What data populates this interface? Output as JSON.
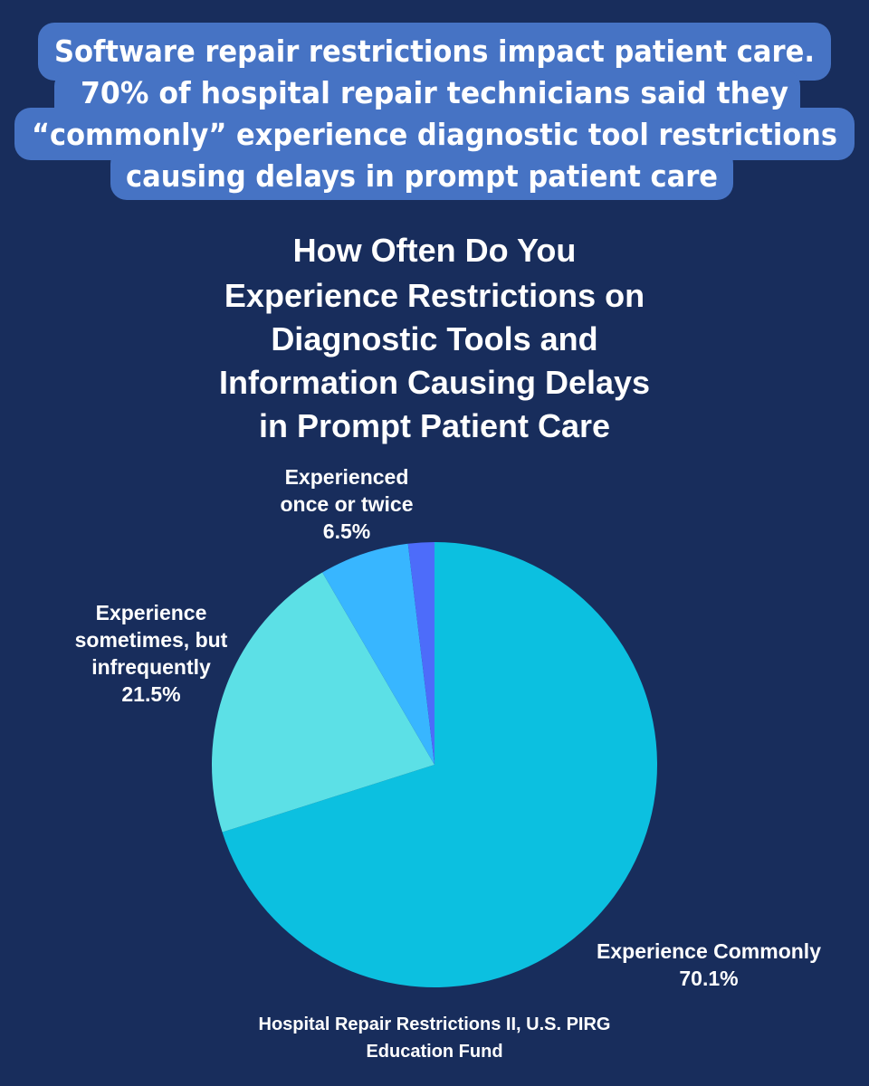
{
  "headline": {
    "lines": [
      "Software repair restrictions impact patient care.",
      "70% of hospital repair technicians said they",
      "“commonly” experience diagnostic tool restrictions",
      "causing delays in prompt patient care"
    ],
    "background_color": "#4673c4"
  },
  "chart_data": {
    "type": "pie",
    "title": "How Often Do You Experience Restrictions on Diagnostic Tools and Information Causing Delays in Prompt Patient Care",
    "title_lines": [
      "How Often Do You",
      "Experience Restrictions on",
      "Diagnostic Tools and",
      "Information Causing Delays",
      "in Prompt Patient Care"
    ],
    "slices": [
      {
        "label_lines": [
          "Experience Commonly"
        ],
        "value": 70.1,
        "value_label": "70.1%",
        "color": "#0cc0e0"
      },
      {
        "label_lines": [
          "Experience",
          "sometimes, but",
          "infrequently"
        ],
        "value": 21.5,
        "value_label": "21.5%",
        "color": "#5ce0e6"
      },
      {
        "label_lines": [
          "Experienced",
          "once or twice"
        ],
        "value": 6.5,
        "value_label": "6.5%",
        "color": "#38b6ff"
      },
      {
        "label_lines": [],
        "value": 1.9,
        "value_label": "",
        "color": "#4d6cfa"
      }
    ],
    "start": "12 o'clock",
    "direction": "clockwise"
  },
  "source": {
    "lines": [
      "Hospital Repair Restrictions II, U.S. PIRG",
      "Education Fund"
    ]
  }
}
